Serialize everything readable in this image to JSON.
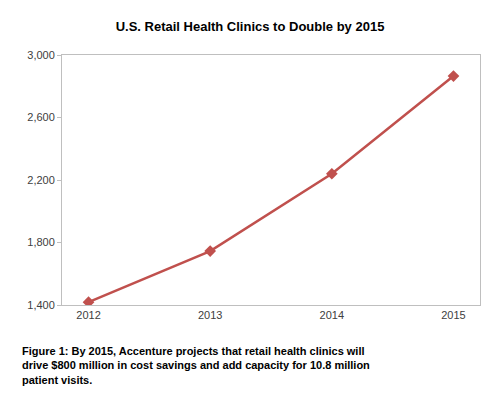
{
  "chart_data": {
    "type": "line",
    "title": "U.S. Retail Health Clinics to Double by 2015",
    "categories": [
      "2012",
      "2013",
      "2014",
      "2015"
    ],
    "values": [
      1418,
      1745,
      2240,
      2865
    ],
    "color": "#c0504d",
    "marker": "diamond",
    "ylim": [
      1400,
      3000
    ],
    "yticks": [
      {
        "value": 1400,
        "label": "1,400"
      },
      {
        "value": 1800,
        "label": "1,800"
      },
      {
        "value": 2200,
        "label": "2,200"
      },
      {
        "value": 2600,
        "label": "2,600"
      },
      {
        "value": 3000,
        "label": "3,000"
      }
    ],
    "grid": false,
    "annotations": [
      "Figure 1: By 2015, Accenture projects that retail health clinics will drive $800 million in cost savings and add capacity for 10.8 million patient visits."
    ]
  }
}
